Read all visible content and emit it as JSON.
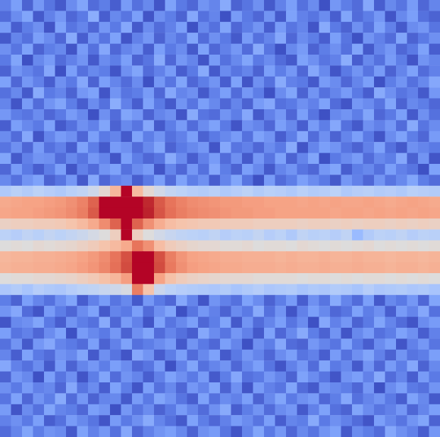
{
  "chart_data": {
    "type": "heatmap",
    "color": "coolwarm",
    "color_range": [
      0,
      100
    ],
    "tick_labels": false,
    "cells": [
      [
        12,
        20,
        5,
        18,
        9,
        3,
        15,
        22,
        7,
        11,
        4,
        19,
        8,
        14,
        2,
        21,
        10,
        6,
        17,
        13,
        24,
        5,
        9,
        16,
        3,
        12,
        20,
        8,
        15,
        1,
        18,
        11,
        7,
        23,
        4,
        14,
        9,
        19,
        6,
        13
      ],
      [
        7,
        15,
        22,
        3,
        12,
        18,
        6,
        10,
        25,
        4,
        14,
        9,
        20,
        2,
        16,
        11,
        5,
        23,
        8,
        13,
        1,
        19,
        10,
        6,
        17,
        3,
        21,
        12,
        9,
        15,
        4,
        22,
        7,
        11,
        18,
        2,
        14,
        20,
        8,
        5
      ],
      [
        19,
        4,
        11,
        16,
        2,
        21,
        9,
        13,
        6,
        18,
        10,
        23,
        3,
        15,
        7,
        12,
        20,
        1,
        14,
        8,
        22,
        6,
        11,
        17,
        4,
        19,
        9,
        13,
        2,
        24,
        10,
        5,
        16,
        8,
        21,
        12,
        3,
        15,
        18,
        9
      ],
      [
        3,
        13,
        8,
        20,
        15,
        6,
        24,
        4,
        17,
        9,
        21,
        2,
        12,
        18,
        5,
        14,
        9,
        22,
        7,
        16,
        10,
        3,
        19,
        8,
        13,
        23,
        6,
        15,
        11,
        4,
        20,
        9,
        1,
        17,
        12,
        7,
        22,
        5,
        10,
        16
      ],
      [
        16,
        9,
        21,
        5,
        11,
        14,
        2,
        19,
        8,
        23,
        6,
        13,
        17,
        4,
        20,
        10,
        15,
        3,
        21,
        6,
        12,
        18,
        7,
        24,
        9,
        1,
        14,
        19,
        5,
        11,
        16,
        8,
        22,
        3,
        13,
        18,
        6,
        10,
        21,
        4
      ],
      [
        10,
        22,
        1,
        14,
        19,
        7,
        12,
        17,
        3,
        15,
        11,
        20,
        5,
        9,
        24,
        6,
        18,
        13,
        2,
        19,
        8,
        14,
        22,
        10,
        15,
        7,
        3,
        21,
        16,
        9,
        12,
        25,
        4,
        14,
        8,
        19,
        11,
        2,
        17,
        13
      ],
      [
        5,
        17,
        13,
        9,
        23,
        1,
        20,
        8,
        14,
        11,
        2,
        16,
        22,
        7,
        12,
        19,
        4,
        10,
        24,
        3,
        15,
        9,
        13,
        5,
        20,
        11,
        18,
        6,
        23,
        14,
        2,
        10,
        17,
        9,
        19,
        5,
        13,
        21,
        7,
        12
      ],
      [
        21,
        6,
        18,
        12,
        4,
        16,
        10,
        23,
        5,
        20,
        13,
        7,
        15,
        1,
        18,
        9,
        22,
        6,
        11,
        17,
        4,
        21,
        2,
        16,
        8,
        24,
        12,
        10,
        3,
        19,
        15,
        6,
        13,
        20,
        1,
        11,
        17,
        8,
        14,
        23
      ],
      [
        8,
        14,
        3,
        24,
        10,
        13,
        5,
        18,
        21,
        2,
        17,
        9,
        11,
        19,
        6,
        23,
        13,
        16,
        3,
        12,
        20,
        7,
        18,
        11,
        1,
        15,
        22,
        5,
        17,
        8,
        13,
        19,
        10,
        4,
        24,
        16,
        9,
        12,
        3,
        18
      ],
      [
        13,
        2,
        19,
        7,
        17,
        22,
        11,
        4,
        15,
        8,
        25,
        12,
        4,
        21,
        10,
        3,
        17,
        9,
        20,
        14,
        6,
        13,
        5,
        19,
        23,
        8,
        10,
        16,
        12,
        21,
        7,
        2,
        18,
        15,
        9,
        22,
        5,
        14,
        11,
        6
      ],
      [
        18,
        11,
        9,
        15,
        6,
        10,
        19,
        14,
        1,
        16,
        7,
        22,
        18,
        5,
        13,
        16,
        2,
        24,
        9,
        7,
        17,
        11,
        23,
        3,
        12,
        18,
        6,
        20,
        9,
        1,
        14,
        17,
        11,
        22,
        6,
        10,
        20,
        3,
        16,
        8
      ],
      [
        4,
        20,
        14,
        10,
        21,
        3,
        8,
        16,
        12,
        22,
        5,
        14,
        9,
        23,
        3,
        11,
        19,
        7,
        15,
        21,
        10,
        2,
        16,
        13,
        6,
        20,
        14,
        4,
        19,
        11,
        23,
        8,
        3,
        16,
        12,
        18,
        7,
        24,
        9,
        15
      ],
      [
        15,
        7,
        23,
        2,
        13,
        19,
        16,
        6,
        20,
        10,
        13,
        3,
        21,
        11,
        17,
        8,
        12,
        20,
        5,
        10,
        14,
        19,
        8,
        21,
        17,
        4,
        11,
        23,
        7,
        16,
        5,
        13,
        20,
        10,
        2,
        15,
        21,
        11,
        6,
        19
      ],
      [
        9,
        16,
        6,
        19,
        8,
        12,
        4,
        21,
        11,
        3,
        19,
        16,
        7,
        14,
        22,
        5,
        10,
        14,
        18,
        2,
        23,
        9,
        12,
        6,
        15,
        10,
        24,
        2,
        13,
        20,
        17,
        9,
        5,
        12,
        21,
        8,
        3,
        16,
        13,
        10
      ],
      [
        22,
        3,
        12,
        17,
        16,
        7,
        14,
        9,
        18,
        13,
        2,
        20,
        11,
        6,
        9,
        24,
        15,
        4,
        12,
        19,
        7,
        16,
        3,
        18,
        9,
        21,
        5,
        13,
        22,
        1,
        10,
        15,
        19,
        7,
        14,
        11,
        23,
        5,
        17,
        2
      ],
      [
        6,
        19,
        10,
        4,
        11,
        20,
        2,
        12,
        7,
        17,
        21,
        8,
        15,
        19,
        2,
        13,
        6,
        18,
        8,
        23,
        11,
        5,
        20,
        14,
        3,
        13,
        17,
        9,
        6,
        18,
        22,
        4,
        11,
        14,
        8,
        20,
        12,
        9,
        1,
        21
      ],
      [
        14,
        8,
        17,
        21,
        5,
        9,
        18,
        3,
        23,
        6,
        12,
        15,
        4,
        10,
        20,
        7,
        21,
        11,
        16,
        4,
        13,
        22,
        9,
        1,
        19,
        7,
        11,
        20,
        15,
        10,
        3,
        18,
        12,
        6,
        17,
        9,
        14,
        22,
        11,
        7
      ],
      [
        36,
        39,
        37,
        40,
        38,
        36,
        39,
        41,
        45,
        52,
        64,
        100,
        63,
        52,
        46,
        42,
        40,
        38,
        37,
        39,
        36,
        38,
        40,
        37,
        39,
        38,
        36,
        39,
        37,
        38,
        40,
        36,
        38,
        39,
        37,
        38,
        36,
        39,
        38,
        37
      ],
      [
        68,
        69,
        70,
        70,
        71,
        72,
        74,
        77,
        84,
        100,
        100,
        100,
        100,
        96,
        86,
        80,
        77,
        75,
        74,
        73,
        72,
        72,
        71,
        71,
        70,
        70,
        70,
        69,
        70,
        69,
        70,
        69,
        69,
        70,
        69,
        68,
        69,
        70,
        69,
        68
      ],
      [
        69,
        70,
        70,
        71,
        72,
        73,
        75,
        78,
        86,
        100,
        100,
        100,
        100,
        97,
        87,
        81,
        78,
        76,
        75,
        74,
        73,
        72,
        72,
        71,
        71,
        70,
        70,
        70,
        70,
        70,
        69,
        70,
        70,
        69,
        70,
        69,
        70,
        69,
        70,
        69
      ],
      [
        55,
        56,
        56,
        57,
        57,
        58,
        60,
        63,
        68,
        75,
        84,
        100,
        84,
        74,
        67,
        62,
        60,
        59,
        58,
        58,
        57,
        57,
        57,
        56,
        56,
        56,
        56,
        55,
        56,
        56,
        55,
        56,
        55,
        56,
        56,
        55,
        56,
        55,
        56,
        55
      ],
      [
        40,
        38,
        41,
        39,
        42,
        40,
        42,
        44,
        47,
        50,
        56,
        100,
        56,
        50,
        46,
        43,
        41,
        40,
        39,
        41,
        38,
        40,
        39,
        42,
        38,
        40,
        36,
        41,
        39,
        40,
        38,
        41,
        30,
        37,
        40,
        39,
        41,
        38,
        40,
        39
      ],
      [
        50,
        51,
        50,
        52,
        51,
        52,
        53,
        55,
        57,
        60,
        63,
        68,
        80,
        74,
        62,
        57,
        55,
        53,
        52,
        52,
        51,
        51,
        52,
        50,
        51,
        51,
        50,
        52,
        51,
        50,
        51,
        50,
        51,
        52,
        50,
        51,
        50,
        51,
        50,
        51
      ],
      [
        64,
        65,
        65,
        66,
        66,
        67,
        68,
        70,
        72,
        75,
        80,
        88,
        100,
        100,
        88,
        78,
        73,
        70,
        69,
        68,
        67,
        67,
        66,
        66,
        66,
        65,
        66,
        65,
        65,
        66,
        65,
        65,
        66,
        65,
        65,
        64,
        65,
        65,
        64,
        65
      ],
      [
        65,
        66,
        66,
        67,
        67,
        68,
        69,
        71,
        73,
        76,
        81,
        89,
        100,
        100,
        89,
        79,
        74,
        71,
        70,
        69,
        68,
        68,
        67,
        67,
        67,
        66,
        67,
        66,
        66,
        67,
        66,
        66,
        67,
        66,
        66,
        65,
        66,
        66,
        65,
        66
      ],
      [
        50,
        51,
        51,
        52,
        52,
        53,
        54,
        56,
        58,
        61,
        64,
        71,
        100,
        100,
        70,
        61,
        57,
        55,
        54,
        53,
        52,
        52,
        52,
        51,
        51,
        51,
        51,
        50,
        51,
        51,
        50,
        51,
        50,
        51,
        51,
        50,
        51,
        50,
        51,
        50
      ],
      [
        35,
        37,
        34,
        38,
        36,
        35,
        38,
        40,
        41,
        43,
        45,
        48,
        78,
        60,
        44,
        40,
        38,
        37,
        36,
        35,
        37,
        34,
        36,
        38,
        35,
        36,
        37,
        34,
        36,
        35,
        37,
        36,
        34,
        38,
        35,
        36,
        37,
        35,
        36,
        34
      ],
      [
        11,
        5,
        20,
        13,
        8,
        16,
        22,
        4,
        12,
        19,
        9,
        14,
        3,
        18,
        10,
        6,
        23,
        13,
        2,
        17,
        12,
        8,
        21,
        15,
        5,
        11,
        19,
        4,
        16,
        9,
        24,
        13,
        7,
        20,
        3,
        14,
        10,
        18,
        6,
        22
      ],
      [
        17,
        23,
        7,
        2,
        19,
        11,
        6,
        15,
        21,
        3,
        13,
        10,
        20,
        7,
        16,
        22,
        1,
        9,
        18,
        12,
        5,
        15,
        10,
        24,
        8,
        17,
        2,
        12,
        20,
        14,
        6,
        9,
        21,
        11,
        16,
        4,
        19,
        13,
        23,
        8
      ],
      [
        2,
        14,
        16,
        22,
        10,
        4,
        17,
        11,
        8,
        24,
        6,
        19,
        12,
        2,
        21,
        9,
        14,
        20,
        6,
        11,
        22,
        3,
        17,
        7,
        13,
        20,
        9,
        15,
        1,
        23,
        12,
        18,
        5,
        10,
        22,
        13,
        7,
        2,
        15,
        19
      ],
      [
        20,
        9,
        12,
        6,
        15,
        21,
        1,
        19,
        14,
        10,
        18,
        5,
        16,
        22,
        7,
        13,
        8,
        4,
        23,
        15,
        9,
        18,
        12,
        3,
        21,
        6,
        14,
        24,
        11,
        5,
        17,
        2,
        14,
        19,
        8,
        11,
        21,
        16,
        4,
        12
      ],
      [
        8,
        17,
        3,
        18,
        23,
        13,
        10,
        7,
        20,
        5,
        12,
        21,
        8,
        11,
        15,
        19,
        3,
        17,
        10,
        6,
        20,
        13,
        1,
        16,
        11,
        23,
        7,
        5,
        18,
        13,
        9,
        21,
        10,
        4,
        15,
        20,
        2,
        12,
        18,
        9
      ],
      [
        13,
        4,
        21,
        10,
        7,
        17,
        14,
        22,
        3,
        16,
        9,
        2,
        23,
        17,
        4,
        11,
        20,
        7,
        14,
        21,
        3,
        10,
        18,
        13,
        6,
        15,
        20,
        9,
        12,
        4,
        19,
        8,
        16,
        22,
        12,
        5,
        17,
        9,
        11,
        20
      ],
      [
        23,
        12,
        8,
        15,
        3,
        19,
        5,
        13,
        18,
        11,
        20,
        15,
        6,
        9,
        19,
        1,
        12,
        22,
        8,
        13,
        17,
        6,
        14,
        20,
        9,
        2,
        12,
        18,
        7,
        22,
        10,
        14,
        3,
        17,
        6,
        19,
        11,
        23,
        5,
        14
      ],
      [
        5,
        18,
        14,
        1,
        20,
        9,
        16,
        2,
        11,
        22,
        7,
        17,
        13,
        4,
        12,
        21,
        16,
        10,
        19,
        3,
        11,
        23,
        8,
        10,
        18,
        13,
        5,
        21,
        15,
        9,
        2,
        17,
        20,
        12,
        24,
        7,
        13,
        4,
        19,
        10
      ],
      [
        16,
        10,
        19,
        12,
        14,
        6,
        23,
        9,
        15,
        4,
        21,
        11,
        2,
        20,
        8,
        14,
        6,
        18,
        13,
        22,
        5,
        16,
        2,
        19,
        12,
        9,
        22,
        7,
        3,
        17,
        14,
        11,
        6,
        18,
        1,
        15,
        20,
        10,
        8,
        17
      ],
      [
        9,
        21,
        6,
        17,
        11,
        24,
        7,
        18,
        5,
        13,
        14,
        3,
        19,
        10,
        22,
        17,
        9,
        4,
        21,
        8,
        15,
        12,
        20,
        5,
        14,
        22,
        10,
        16,
        19,
        6,
        11,
        23,
        8,
        13,
        17,
        10,
        4,
        21,
        14,
        3
      ],
      [
        19,
        2,
        15,
        8,
        22,
        13,
        11,
        6,
        20,
        17,
        1,
        18,
        9,
        15,
        5,
        10,
        19,
        13,
        7,
        16,
        24,
        4,
        11,
        17,
        7,
        15,
        18,
        3,
        12,
        21,
        8,
        5,
        22,
        15,
        9,
        12,
        18,
        6,
        13,
        20
      ],
      [
        12,
        16,
        10,
        20,
        4,
        8,
        19,
        14,
        9,
        2,
        19,
        10,
        16,
        24,
        13,
        8,
        3,
        21,
        11,
        6,
        12,
        19,
        15,
        9,
        20,
        4,
        13,
        11,
        24,
        10,
        16,
        12,
        7,
        2,
        20,
        14,
        9,
        17,
        22,
        5
      ],
      [
        7,
        13,
        22,
        11,
        17,
        15,
        3,
        21,
        12,
        18,
        8,
        23,
        6,
        12,
        17,
        20,
        14,
        5,
        16,
        19,
        9,
        2,
        13,
        22,
        10,
        18,
        6,
        14,
        9,
        17,
        21,
        3,
        15,
        11,
        7,
        23,
        16,
        12,
        4,
        18
      ]
    ]
  }
}
